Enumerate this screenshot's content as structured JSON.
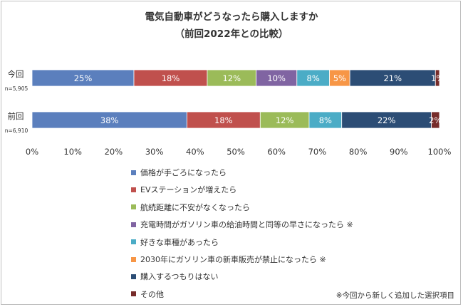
{
  "chart_data": {
    "type": "bar",
    "stacked": "percent",
    "orientation": "horizontal",
    "title": "電気自動車がどうなったら購入しますか",
    "subtitle": "（前回2022年との比較）",
    "categories": [
      {
        "label": "今回",
        "sample": "n=5,905"
      },
      {
        "label": "前回",
        "sample": "n=6,910"
      }
    ],
    "series": [
      {
        "name": "価格が手ごろになったら",
        "color": "#5b7fbd",
        "values": [
          25,
          38
        ]
      },
      {
        "name": "EVステーションが増えたら",
        "color": "#c0504d",
        "values": [
          18,
          18
        ]
      },
      {
        "name": "航続距離に不安がなくなったら",
        "color": "#9bbb59",
        "values": [
          12,
          12
        ]
      },
      {
        "name": "充電時間がガソリン車の給油時間と同等の早さになったら ※",
        "color": "#8064a2",
        "values": [
          10,
          null
        ]
      },
      {
        "name": "好きな車種があったら",
        "color": "#4bacc6",
        "values": [
          8,
          8
        ]
      },
      {
        "name": "2030年にガソリン車の新車販売が禁止になったら ※",
        "color": "#f79646",
        "values": [
          5,
          null
        ]
      },
      {
        "name": "購入するつもりはない",
        "color": "#2c4d75",
        "values": [
          21,
          22
        ]
      },
      {
        "name": "その他",
        "color": "#772c2a",
        "values": [
          1,
          2
        ]
      }
    ],
    "xlim": [
      0,
      100
    ],
    "xticks": [
      "0%",
      "10%",
      "20%",
      "30%",
      "40%",
      "50%",
      "60%",
      "70%",
      "80%",
      "90%",
      "100%"
    ],
    "value_suffix": "%",
    "legend_position": "bottom",
    "grid": false,
    "footnote": "※今回から新しく追加した選択項目"
  }
}
